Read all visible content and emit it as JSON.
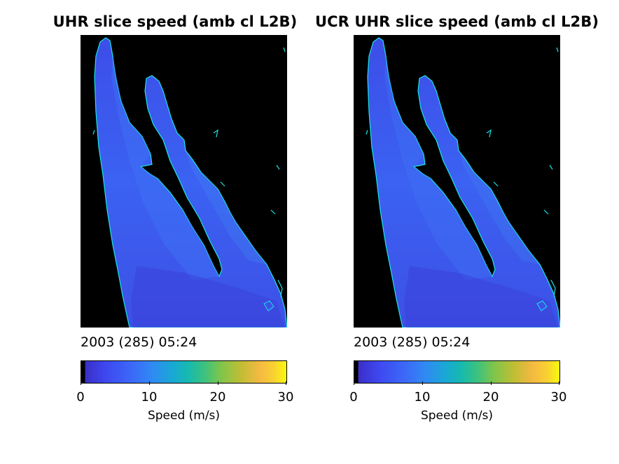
{
  "panels": [
    {
      "title": "UHR slice speed (amb cl L2B)",
      "timestamp": "2003 (285) 05:24",
      "colorbar": {
        "label": "Speed (m/s)",
        "ticks": [
          "0",
          "10",
          "20",
          "30"
        ],
        "range": [
          0,
          30
        ]
      }
    },
    {
      "title": "UCR UHR slice speed (amb cl L2B)",
      "timestamp": "2003 (285) 05:24",
      "colorbar": {
        "label": "Speed (m/s)",
        "ticks": [
          "0",
          "10",
          "20",
          "30"
        ],
        "range": [
          0,
          30
        ]
      }
    }
  ],
  "colors": {
    "background": "#000000",
    "ocean_low": "#3c48e8",
    "ocean_mid": "#3b68f5",
    "coast": "#19e5e5"
  }
}
